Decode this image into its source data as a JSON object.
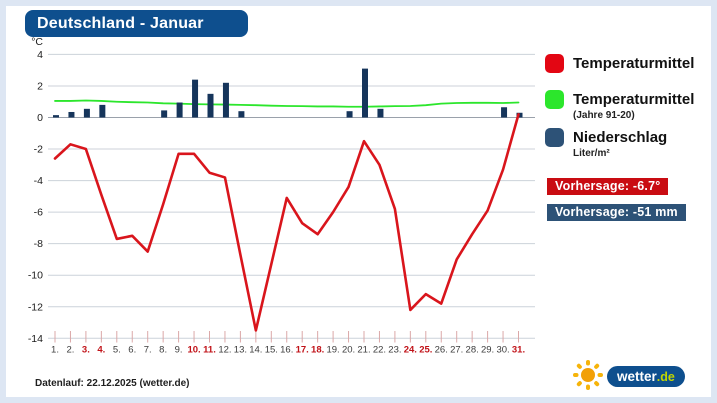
{
  "header": {
    "title": "Deutschland - Januar"
  },
  "chart_data": {
    "type": "line+bar",
    "title": "Deutschland - Januar",
    "ylabel": "°C",
    "ylim": [
      -14,
      4
    ],
    "y_ticks": [
      4,
      2,
      0,
      -2,
      -4,
      -6,
      -8,
      -10,
      -12,
      -14
    ],
    "grid": true,
    "legend_position": "right",
    "x_labels": [
      "1.",
      "2.",
      "3.",
      "4.",
      "5.",
      "6.",
      "7.",
      "8.",
      "9.",
      "10.",
      "11.",
      "12.",
      "13.",
      "14.",
      "15.",
      "16.",
      "17.",
      "18.",
      "19.",
      "20.",
      "21.",
      "22.",
      "23.",
      "24.",
      "25.",
      "26.",
      "27.",
      "28.",
      "29.",
      "30.",
      "31."
    ],
    "highlight_days": [
      3,
      4,
      10,
      11,
      17,
      18,
      24,
      25,
      31
    ],
    "series": [
      {
        "name": "Temperaturmittel",
        "type": "line",
        "color": "#d9151c",
        "values": [
          -2.6,
          -1.7,
          -2.0,
          -4.9,
          -7.7,
          -7.5,
          -8.5,
          -5.5,
          -2.3,
          -2.3,
          -3.5,
          -3.8,
          -8.7,
          -13.5,
          -9.3,
          -5.1,
          -6.7,
          -7.4,
          -6.0,
          -4.4,
          -1.5,
          -3.0,
          -5.8,
          -12.2,
          -11.2,
          -11.8,
          -9.0,
          -7.4,
          -5.9,
          -3.3,
          0.2
        ]
      },
      {
        "name": "Temperaturmittel (Jahre 91-20)",
        "type": "line",
        "color": "#2ce62c",
        "values": [
          1.05,
          1.05,
          1.08,
          1.05,
          1.0,
          0.97,
          0.95,
          0.9,
          0.88,
          0.85,
          0.83,
          0.82,
          0.8,
          0.78,
          0.75,
          0.73,
          0.72,
          0.7,
          0.7,
          0.68,
          0.68,
          0.7,
          0.72,
          0.73,
          0.78,
          0.88,
          0.92,
          0.93,
          0.93,
          0.92,
          0.95
        ]
      },
      {
        "name": "Niederschlag (Liter/m²)",
        "type": "bar",
        "color": "#16355b",
        "values": [
          0.15,
          0.35,
          0.55,
          0.8,
          0,
          0,
          0,
          0.45,
          0.95,
          2.4,
          1.5,
          2.2,
          0.4,
          0,
          0,
          0,
          0,
          0,
          0,
          0.4,
          3.1,
          0.55,
          0,
          0,
          0,
          0,
          0,
          0,
          0,
          0.65,
          0.3
        ]
      }
    ]
  },
  "legend": {
    "items": [
      {
        "label": "Temperaturmittel",
        "sub": "",
        "color": "#e30613"
      },
      {
        "label": "Temperaturmittel",
        "sub": "(Jahre 91-20)",
        "color": "#2ce62c"
      },
      {
        "label": "Niederschlag",
        "sub": "Liter/m²",
        "color": "#2d5277"
      }
    ]
  },
  "badges": [
    {
      "label": "Vorhersage: -6.7°",
      "color": "#c90c12"
    },
    {
      "label": "Vorhersage: -51 mm",
      "color": "#2d5277"
    }
  ],
  "footer": {
    "datenlauf": "Datenlauf: 22.12.2025 (wetter.de)"
  },
  "logo": {
    "word": "wetter",
    "tld": ".de"
  }
}
